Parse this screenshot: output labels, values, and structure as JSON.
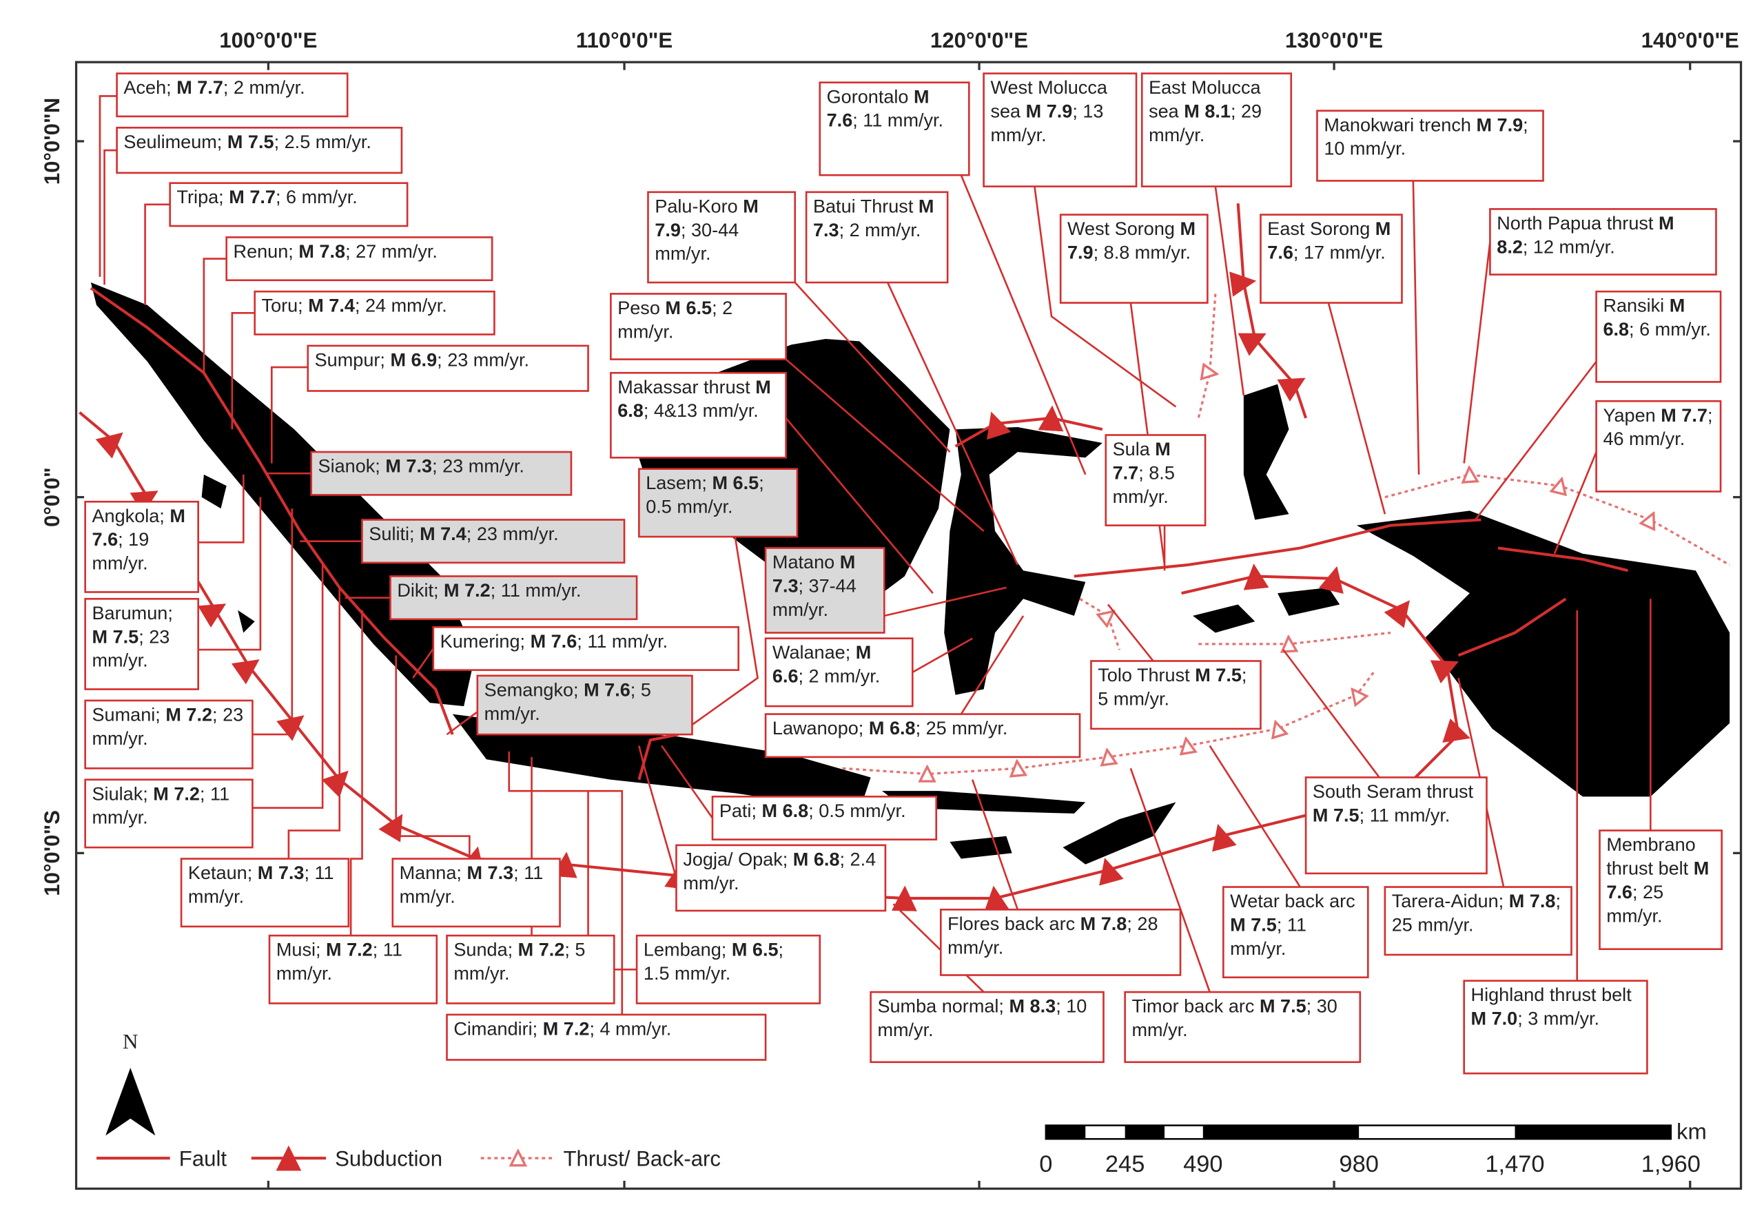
{
  "map": {
    "lon_labels": [
      "100°0'0\"E",
      "110°0'0\"E",
      "120°0'0\"E",
      "130°0'0\"E",
      "140°0'0\"E"
    ],
    "lat_labels": [
      "10°0'0\"N",
      "0°0'0\"",
      "10°0'0\"S"
    ],
    "faults": [
      {
        "name": "Aceh;",
        "magnitude": "M 7.7",
        "rate": "; 2 mm/yr."
      },
      {
        "name": "Seulimeum;",
        "magnitude": "M 7.5",
        "rate": "; 2.5 mm/yr."
      },
      {
        "name": "Tripa;",
        "magnitude": "M 7.7",
        "rate": "; 6 mm/yr."
      },
      {
        "name": "Renun;",
        "magnitude": "M 7.8",
        "rate": "; 27 mm/yr."
      },
      {
        "name": "Toru;",
        "magnitude": "M 7.4",
        "rate": "; 24 mm/yr."
      },
      {
        "name": "Sumpur;",
        "magnitude": "M 6.9",
        "rate": "; 23 mm/yr."
      },
      {
        "name": "Sianok;",
        "magnitude": "M 7.3",
        "rate": "; 23 mm/yr."
      },
      {
        "name": "Angkola;",
        "magnitude": "M 7.6",
        "rate": "; 19 mm/yr."
      },
      {
        "name": "Suliti;",
        "magnitude": "M 7.4",
        "rate": "; 23 mm/yr."
      },
      {
        "name": "Dikit;",
        "magnitude": "M 7.2",
        "rate": "; 11 mm/yr."
      },
      {
        "name": "Barumun;",
        "magnitude": "M 7.5",
        "rate": "; 23 mm/yr."
      },
      {
        "name": "Kumering;",
        "magnitude": "M 7.6",
        "rate": "; 11 mm/yr."
      },
      {
        "name": "Sumani;",
        "magnitude": "M 7.2",
        "rate": "; 23 mm/yr."
      },
      {
        "name": "Semangko;",
        "magnitude": "M 7.6",
        "rate": "; 5 mm/yr."
      },
      {
        "name": "Siulak;",
        "magnitude": "M 7.2",
        "rate": "; 11 mm/yr."
      },
      {
        "name": "Ketaun;",
        "magnitude": "M 7.3",
        "rate": "; 11 mm/yr."
      },
      {
        "name": "Manna;",
        "magnitude": "M 7.3",
        "rate": "; 11 mm/yr."
      },
      {
        "name": "Musi;",
        "magnitude": "M 7.2",
        "rate": "; 11 mm/yr."
      },
      {
        "name": "Sunda;",
        "magnitude": "M 7.2",
        "rate": "; 5 mm/yr."
      },
      {
        "name": "Lembang;",
        "magnitude": "M 6.5",
        "rate": "; 1.5 mm/yr."
      },
      {
        "name": "Cimandiri;",
        "magnitude": "M 7.2",
        "rate": "; 4 mm/yr."
      },
      {
        "name": "Jogja/ Opak;",
        "magnitude": "M 6.8",
        "rate": "; 2.4 mm/yr."
      },
      {
        "name": "Pati;",
        "magnitude": "M 6.8",
        "rate": "; 0.5 mm/yr."
      },
      {
        "name": "Sumba normal;",
        "magnitude": "M 8.3",
        "rate": "; 10 mm/yr."
      },
      {
        "name": "Flores back arc",
        "magnitude": "M 7.8",
        "rate": "; 28 mm/yr."
      },
      {
        "name": "Timor back arc",
        "magnitude": "M 7.5",
        "rate": "; 30 mm/yr."
      },
      {
        "name": "Wetar back arc",
        "magnitude": "M 7.5",
        "rate": "; 11 mm/yr."
      },
      {
        "name": "Tarera-Aidun;",
        "magnitude": "M 7.8",
        "rate": "; 25 mm/yr."
      },
      {
        "name": "Highland thrust belt",
        "magnitude": "M 7.0",
        "rate": "; 3 mm/yr."
      },
      {
        "name": "Membrano thrust belt",
        "magnitude": "M 7.6",
        "rate": "; 25 mm/yr."
      },
      {
        "name": "South Seram thrust",
        "magnitude": "M 7.5",
        "rate": "; 11 mm/yr."
      },
      {
        "name": "Lawanopo;",
        "magnitude": "M 6.8",
        "rate": "; 25 mm/yr."
      },
      {
        "name": "Tolo Thrust",
        "magnitude": "M 7.5",
        "rate": "; 5 mm/yr."
      },
      {
        "name": "Walanae;",
        "magnitude": "M 6.6",
        "rate": "; 2 mm/yr."
      },
      {
        "name": "Matano",
        "magnitude": "M 7.3",
        "rate": "; 37-44 mm/yr."
      },
      {
        "name": "Lasem;",
        "magnitude": "M 6.5",
        "rate": "; 0.5 mm/yr."
      },
      {
        "name": "Makassar thrust",
        "magnitude": "M 6.8",
        "rate": "; 4&13 mm/yr."
      },
      {
        "name": "Peso",
        "magnitude": "M 6.5",
        "rate": "; 2 mm/yr."
      },
      {
        "name": "Palu-Koro",
        "magnitude": "M 7.9",
        "rate": "; 30-44 mm/yr."
      },
      {
        "name": "Batui Thrust",
        "magnitude": "M 7.3",
        "rate": "; 2 mm/yr."
      },
      {
        "name": "Gorontalo",
        "magnitude": "M 7.6",
        "rate": "; 11 mm/yr."
      },
      {
        "name": "West Molucca sea",
        "magnitude": "M 7.9",
        "rate": "; 13 mm/yr."
      },
      {
        "name": "East Molucca sea",
        "magnitude": "M 8.1",
        "rate": "; 29 mm/yr."
      },
      {
        "name": "West Sorong",
        "magnitude": "M 7.9",
        "rate": "; 8.8 mm/yr."
      },
      {
        "name": "East Sorong",
        "magnitude": "M 7.6",
        "rate": "; 17 mm/yr."
      },
      {
        "name": "Manokwari trench",
        "magnitude": "M 7.9",
        "rate": "; 10 mm/yr."
      },
      {
        "name": "North Papua thrust",
        "magnitude": "M 8.2",
        "rate": "; 12 mm/yr."
      },
      {
        "name": "Ransiki",
        "magnitude": "M 6.8",
        "rate": "; 6 mm/yr."
      },
      {
        "name": "Yapen",
        "magnitude": "M 7.7",
        "rate": "; 46 mm/yr."
      },
      {
        "name": "Sula",
        "magnitude": "M 7.7",
        "rate": "; 8.5 mm/yr."
      }
    ],
    "legend": {
      "fault": "Fault",
      "subduction": "Subduction",
      "thrust": "Thrust/ Back-arc"
    },
    "north": "N",
    "scale": {
      "labels": [
        "0",
        "245",
        "490",
        "980",
        "1,470",
        "1,960"
      ],
      "unit": "km"
    }
  }
}
